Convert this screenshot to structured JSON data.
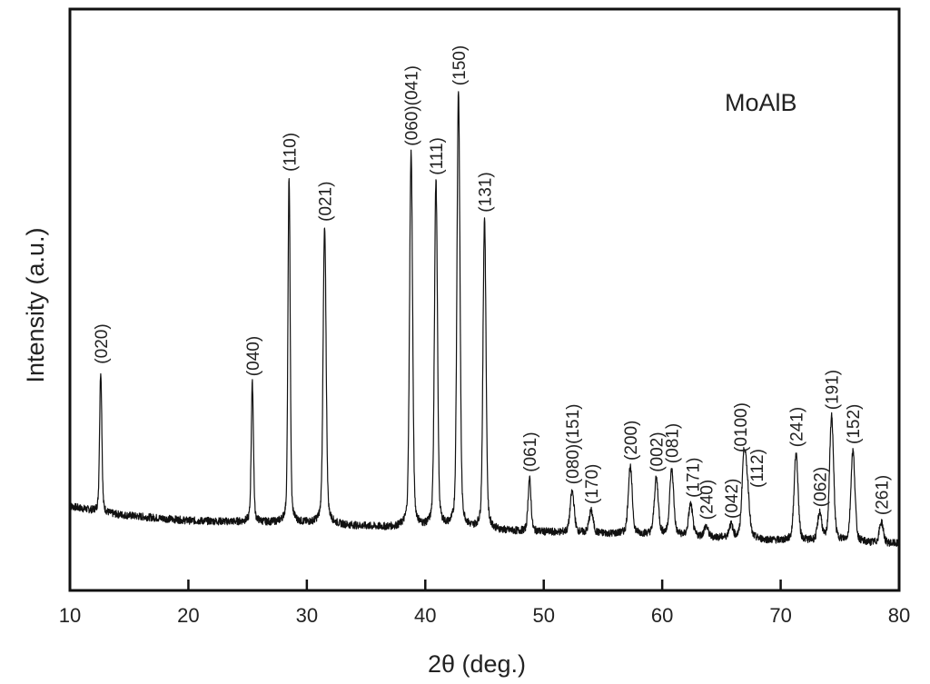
{
  "chart_data": {
    "type": "line",
    "title": "",
    "sample_label": "MoAlB",
    "xlabel": "2θ (deg.)",
    "ylabel": "Intensity (a.u.)",
    "xlim": [
      10,
      80
    ],
    "xticks": [
      10,
      20,
      30,
      40,
      50,
      60,
      70,
      80
    ],
    "yticks": [],
    "grid": false,
    "legend": null,
    "baseline": {
      "description": "noisy background slowly decreasing from left to right",
      "points": [
        [
          10,
          14.5
        ],
        [
          13,
          13.2
        ],
        [
          20,
          12.0
        ],
        [
          30,
          11.5
        ],
        [
          40,
          10.5
        ],
        [
          50,
          10.0
        ],
        [
          60,
          9.5
        ],
        [
          70,
          8.5
        ],
        [
          80,
          8.0
        ]
      ]
    },
    "peaks": [
      {
        "hkl": "(020)",
        "two_theta": 12.6,
        "intensity": 37.7
      },
      {
        "hkl": "(040)",
        "two_theta": 25.4,
        "intensity": 35.6
      },
      {
        "hkl": "(110)",
        "two_theta": 28.5,
        "intensity": 70.8
      },
      {
        "hkl": "(021)",
        "two_theta": 31.5,
        "intensity": 62.2
      },
      {
        "hkl": "(060)(041)",
        "two_theta": 38.8,
        "intensity": 75.2
      },
      {
        "hkl": "(111)",
        "two_theta": 40.9,
        "intensity": 70.2
      },
      {
        "hkl": "(150)",
        "two_theta": 42.8,
        "intensity": 85.6
      },
      {
        "hkl": "(131)",
        "two_theta": 45.0,
        "intensity": 63.8
      },
      {
        "hkl": "(061)",
        "two_theta": 48.8,
        "intensity": 19.1
      },
      {
        "hkl": "(080)(151)",
        "two_theta": 52.4,
        "intensity": 17.0
      },
      {
        "hkl": "(170)",
        "two_theta": 54.0,
        "intensity": 13.6
      },
      {
        "hkl": "(200)",
        "two_theta": 57.3,
        "intensity": 21.1
      },
      {
        "hkl": "(002)",
        "two_theta": 59.5,
        "intensity": 19.1
      },
      {
        "hkl": "(081)",
        "two_theta": 60.8,
        "intensity": 20.6
      },
      {
        "hkl": "(171)",
        "two_theta": 62.4,
        "intensity": 14.7
      },
      {
        "hkl": "(240)",
        "two_theta": 63.7,
        "intensity": 10.9
      },
      {
        "hkl": "(042)",
        "two_theta": 65.8,
        "intensity": 11.1
      },
      {
        "hkl": "(0100)",
        "two_theta": 66.9,
        "intensity": 22.5
      },
      {
        "hkl": "(112)",
        "two_theta": 67.2,
        "intensity": 16.4
      },
      {
        "hkl": "(241)",
        "two_theta": 71.3,
        "intensity": 23.4
      },
      {
        "hkl": "(062)",
        "two_theta": 73.3,
        "intensity": 13.1
      },
      {
        "hkl": "(191)",
        "two_theta": 74.3,
        "intensity": 29.8
      },
      {
        "hkl": "(152)",
        "two_theta": 76.1,
        "intensity": 23.9
      },
      {
        "hkl": "(261)",
        "two_theta": 78.5,
        "intensity": 11.7
      }
    ]
  },
  "labels": {
    "sample": "MoAlB",
    "xlabel": "2θ (deg.)",
    "ylabel": "Intensity (a.u.)"
  },
  "colors": {
    "line": "#111111",
    "axis": "#111111",
    "text": "#222222",
    "background": "#ffffff"
  }
}
